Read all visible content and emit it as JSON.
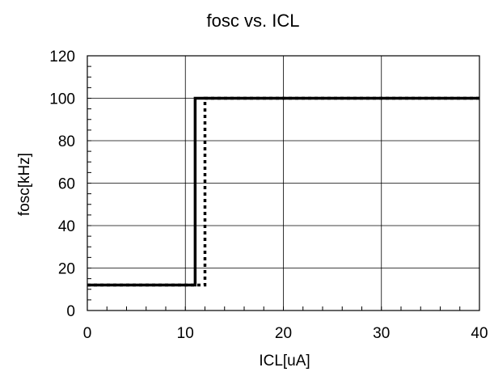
{
  "chart_data": {
    "type": "line",
    "title": "fosc vs. ICL",
    "xlabel": "ICL[uA]",
    "ylabel": "fosc[kHz]",
    "xlim": [
      0,
      40
    ],
    "ylim": [
      0,
      120
    ],
    "xticks": [
      0,
      10,
      20,
      30,
      40
    ],
    "yticks": [
      0,
      20,
      40,
      60,
      80,
      100,
      120
    ],
    "xticks_labels": [
      "0",
      "10",
      "20",
      "30",
      "40"
    ],
    "yticks_labels": [
      "0",
      "20",
      "40",
      "60",
      "80",
      "100",
      "120"
    ],
    "grid": true,
    "legend": "none",
    "series": [
      {
        "style": "solid",
        "color": "#000000",
        "x": [
          0,
          11,
          11,
          40
        ],
        "y": [
          12,
          12,
          100,
          100
        ]
      },
      {
        "style": "dotted",
        "color": "#000000",
        "x": [
          0,
          12,
          12,
          40
        ],
        "y": [
          12,
          12,
          100,
          100
        ]
      }
    ]
  }
}
